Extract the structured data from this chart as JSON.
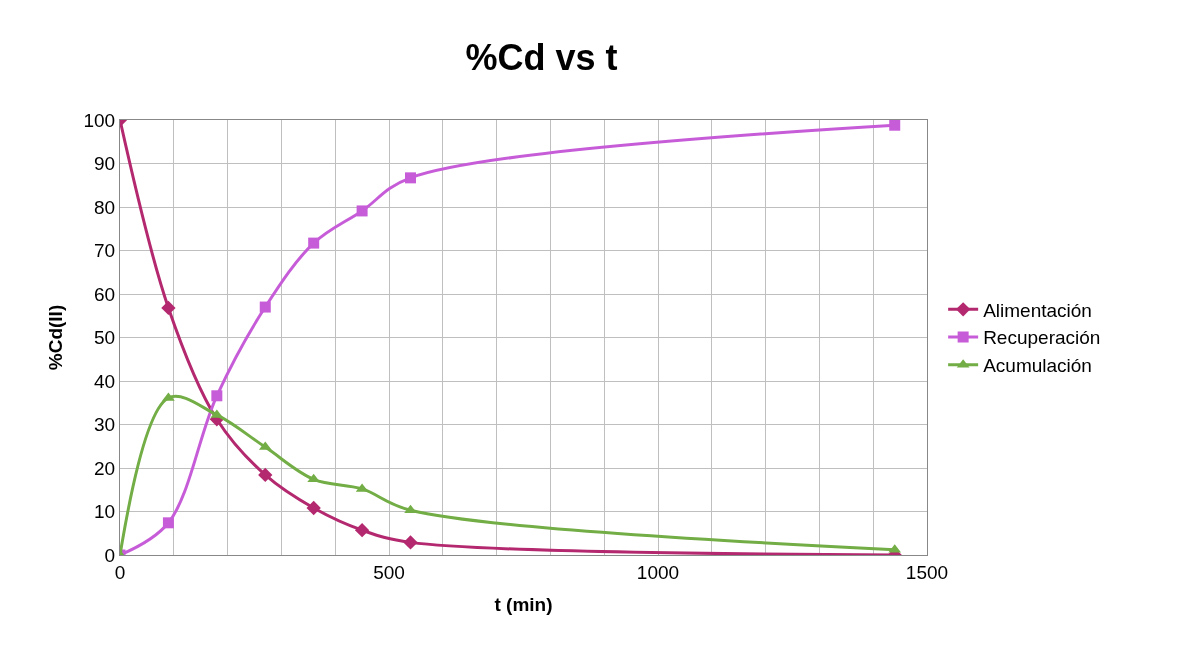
{
  "chart_data": {
    "type": "line",
    "title": "%Cd vs t",
    "xlabel": "t (min)",
    "ylabel": "%Cd(II)",
    "x": [
      0,
      90,
      180,
      270,
      360,
      450,
      540,
      1440
    ],
    "series": [
      {
        "name": "Alimentación",
        "color": "#b3286e",
        "marker": "diamond",
        "values": [
          100,
          56.8,
          31.2,
          18.4,
          10.8,
          5.7,
          2.9,
          0
        ]
      },
      {
        "name": "Recuperación",
        "color": "#c75cd8",
        "marker": "square",
        "values": [
          0,
          7.4,
          36.6,
          57.0,
          71.7,
          79.1,
          86.7,
          98.8
        ]
      },
      {
        "name": "Acumulación",
        "color": "#72ad45",
        "marker": "triangle",
        "values": [
          0,
          36.1,
          32.2,
          24.8,
          17.4,
          15.2,
          10.3,
          1.2
        ]
      }
    ],
    "xlim": [
      0,
      1500
    ],
    "xticks": [
      0,
      {
        "value": 100,
        "label": null
      },
      {
        "value": 200,
        "label": null
      },
      {
        "value": 300,
        "label": null
      },
      {
        "value": 400,
        "label": null
      },
      500,
      {
        "value": 600,
        "label": null
      },
      {
        "value": 700,
        "label": null
      },
      {
        "value": 800,
        "label": null
      },
      {
        "value": 900,
        "label": null
      },
      1000,
      {
        "value": 1100,
        "label": null
      },
      {
        "value": 1200,
        "label": null
      },
      {
        "value": 1300,
        "label": null
      },
      {
        "value": 1400,
        "label": null
      },
      1500
    ],
    "ylim": [
      0,
      100
    ],
    "yticks": [
      0,
      10,
      20,
      30,
      40,
      50,
      60,
      70,
      80,
      90,
      100
    ],
    "grid": true,
    "legend": "right",
    "line_style": "solid"
  }
}
